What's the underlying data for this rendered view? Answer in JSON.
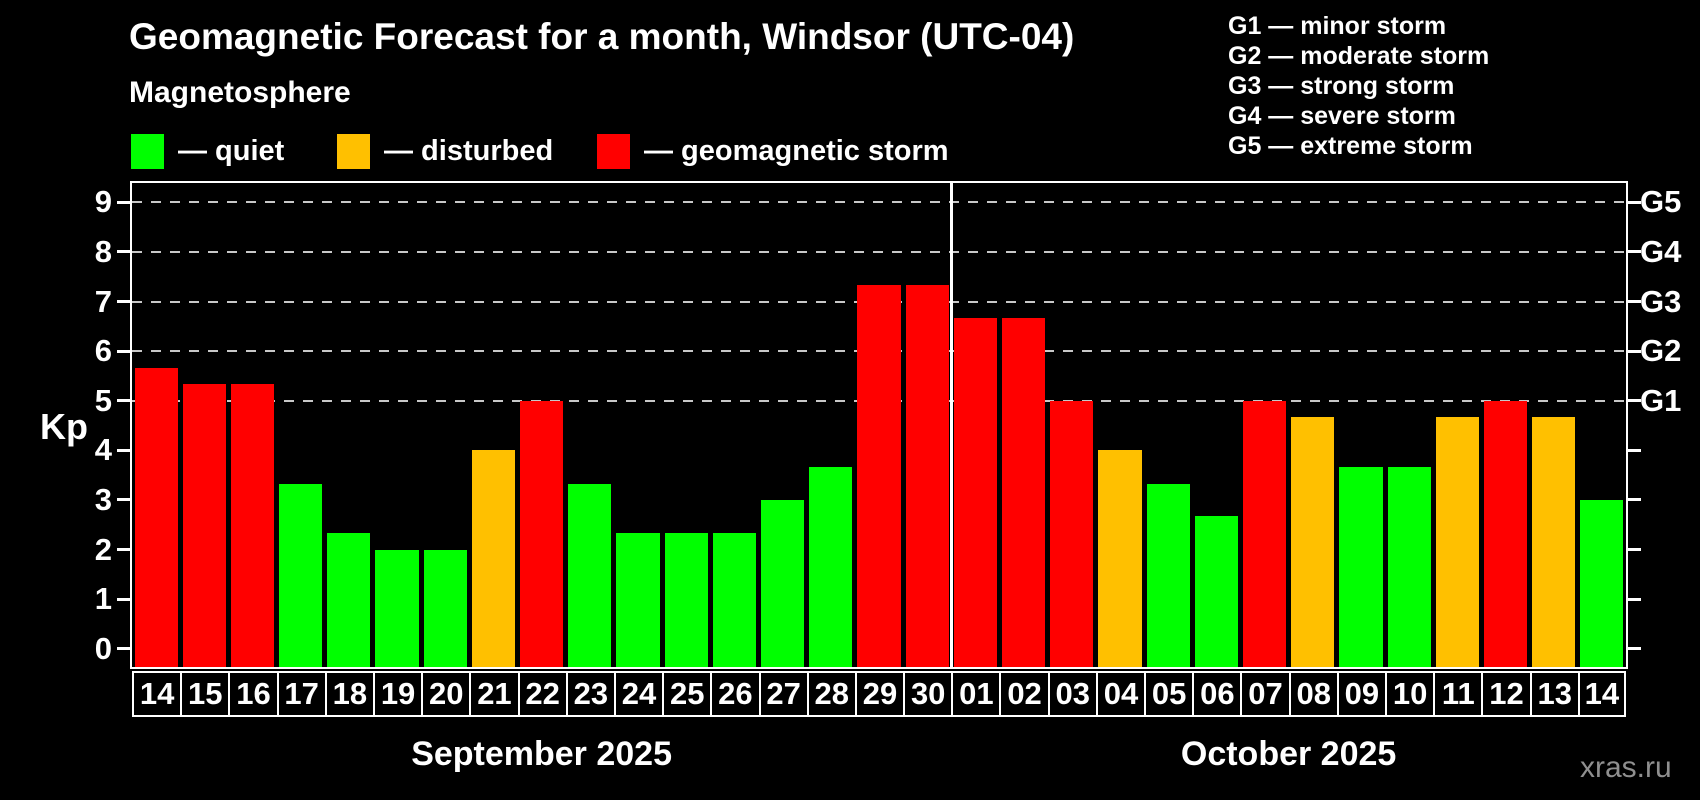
{
  "header": {
    "title": "Geomagnetic Forecast for a month, Windsor (UTC-04)",
    "subtitle": "Magnetosphere"
  },
  "legend": {
    "items": [
      {
        "label": "— quiet",
        "status": "quiet"
      },
      {
        "label": "— disturbed",
        "status": "disturbed"
      },
      {
        "label": "— geomagnetic storm",
        "status": "storm"
      }
    ]
  },
  "g_legend": {
    "lines": [
      "G1 — minor storm",
      "G2 — moderate storm",
      "G3 — strong storm",
      "G4 — severe storm",
      "G5 — extreme storm"
    ]
  },
  "axes": {
    "y_label": "Kp",
    "y_ticks": [
      "0",
      "1",
      "2",
      "3",
      "4",
      "5",
      "6",
      "7",
      "8",
      "9"
    ]
  },
  "chart_data": {
    "type": "bar",
    "title": "Geomagnetic Forecast for a month, Windsor (UTC-04)",
    "ylabel": "Kp",
    "ylim": [
      -0.37,
      9.39
    ],
    "gridline_levels": [
      5,
      6,
      7,
      8,
      9
    ],
    "grid": "dashed horizontal lines at G-storm levels only",
    "x_categories": [
      "14",
      "15",
      "16",
      "17",
      "18",
      "19",
      "20",
      "21",
      "22",
      "23",
      "24",
      "25",
      "26",
      "27",
      "28",
      "29",
      "30",
      "01",
      "02",
      "03",
      "04",
      "05",
      "06",
      "07",
      "08",
      "09",
      "10",
      "11",
      "12",
      "13",
      "14"
    ],
    "kp_values": [
      5.67,
      5.33,
      5.33,
      3.33,
      2.33,
      2.0,
      2.0,
      4.0,
      5.0,
      3.33,
      2.33,
      2.33,
      2.33,
      3.0,
      3.67,
      7.33,
      7.33,
      6.67,
      6.67,
      5.0,
      4.0,
      3.33,
      2.67,
      5.0,
      4.67,
      3.67,
      3.67,
      4.67,
      5.0,
      4.67,
      3.0
    ],
    "bar_status": [
      "storm",
      "storm",
      "storm",
      "quiet",
      "quiet",
      "quiet",
      "quiet",
      "disturbed",
      "storm",
      "quiet",
      "quiet",
      "quiet",
      "quiet",
      "quiet",
      "quiet",
      "storm",
      "storm",
      "storm",
      "storm",
      "storm",
      "disturbed",
      "quiet",
      "quiet",
      "storm",
      "disturbed",
      "quiet",
      "quiet",
      "disturbed",
      "storm",
      "disturbed",
      "quiet"
    ],
    "status_colors": {
      "quiet": "#00ff00",
      "disturbed": "#ffc000",
      "storm": "#ff0000"
    },
    "month_groups": [
      {
        "label": "September 2025",
        "days": 17
      },
      {
        "label": "October 2025",
        "days": 14
      }
    ],
    "right_axis_labels": [
      {
        "kp": 5,
        "label": "G1"
      },
      {
        "kp": 6,
        "label": "G2"
      },
      {
        "kp": 7,
        "label": "G3"
      },
      {
        "kp": 8,
        "label": "G4"
      },
      {
        "kp": 9,
        "label": "G5"
      }
    ]
  },
  "footer": {
    "watermark": "xras.ru"
  }
}
